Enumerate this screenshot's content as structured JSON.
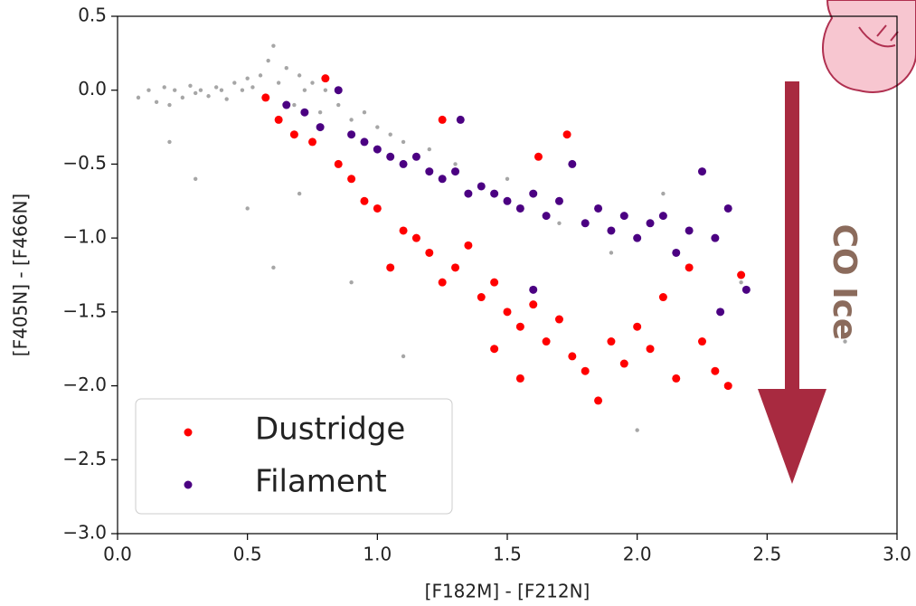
{
  "chart_data": {
    "type": "scatter",
    "x_label": "[F182M] - [F212N]",
    "y_label": "[F405N] - [F466N]",
    "annotation": "CO Ice",
    "xlim": [
      0,
      3.0
    ],
    "ylim": [
      -3.0,
      0.5
    ],
    "xticks": [
      {
        "value": 0,
        "label": "0.0"
      },
      0.5,
      {
        "value": 1,
        "label": "1.0"
      },
      1.5,
      {
        "value": 2,
        "label": "2.0"
      },
      2.5,
      {
        "value": 3,
        "label": "3.0"
      }
    ],
    "yticks": [
      0.5,
      {
        "value": 0,
        "label": "0.0"
      },
      {
        "value": -0.5,
        "label": "−0.5"
      },
      {
        "value": -1,
        "label": "−1.0"
      },
      {
        "value": -1.5,
        "label": "−1.5"
      },
      {
        "value": -2,
        "label": "−2.0"
      },
      {
        "value": -2.5,
        "label": "−2.5"
      },
      {
        "value": -3,
        "label": "−3.0"
      }
    ],
    "series": [
      {
        "color": "#000000",
        "x": [
          0.08,
          0.12,
          0.15,
          0.18,
          0.2,
          0.22,
          0.25,
          0.28,
          0.3,
          0.32,
          0.35,
          0.38,
          0.4,
          0.42,
          0.45,
          0.48,
          0.5,
          0.52,
          0.55,
          0.58,
          0.6,
          0.62,
          0.65,
          0.68,
          0.7,
          0.72,
          0.75,
          0.78,
          0.8,
          0.85,
          0.9,
          0.95,
          1.0,
          1.05,
          1.1,
          1.2,
          0.3,
          0.5,
          0.7,
          1.3,
          1.5,
          1.7,
          1.9,
          2.1,
          2.4,
          2.6,
          0.2,
          0.9,
          1.1,
          2.0,
          2.8,
          0.6
        ],
        "values": [
          -0.05,
          0.0,
          -0.08,
          0.02,
          -0.1,
          0.0,
          -0.05,
          0.03,
          -0.02,
          0.0,
          -0.04,
          0.02,
          0.0,
          -0.06,
          0.05,
          0.0,
          0.08,
          0.02,
          0.1,
          0.2,
          0.3,
          0.05,
          0.15,
          -0.1,
          0.1,
          0.0,
          0.05,
          -0.15,
          0.0,
          -0.1,
          -0.2,
          -0.15,
          -0.25,
          -0.3,
          -0.35,
          -0.4,
          -0.6,
          -0.8,
          -0.7,
          -0.5,
          -0.6,
          -0.9,
          -1.1,
          -0.7,
          -1.3,
          -1.6,
          -0.35,
          -1.3,
          -1.8,
          -2.3,
          -1.7,
          -1.2
        ]
      },
      {
        "name": "Dustridge",
        "color": "#ff0000",
        "x": [
          0.57,
          0.62,
          0.68,
          0.75,
          0.8,
          0.85,
          0.9,
          0.95,
          1.0,
          1.05,
          1.1,
          1.15,
          1.2,
          1.25,
          1.3,
          1.35,
          1.4,
          1.45,
          1.5,
          1.55,
          1.6,
          1.65,
          1.7,
          1.73,
          1.75,
          1.8,
          1.85,
          1.9,
          1.95,
          2.0,
          2.05,
          2.1,
          2.15,
          2.2,
          2.25,
          2.3,
          2.35,
          2.4,
          1.62,
          1.25,
          1.45,
          1.55
        ],
        "values": [
          -0.05,
          -0.2,
          -0.3,
          -0.35,
          0.08,
          -0.5,
          -0.6,
          -0.75,
          -0.8,
          -1.2,
          -0.95,
          -1.0,
          -1.1,
          -1.3,
          -1.2,
          -1.05,
          -1.4,
          -1.3,
          -1.5,
          -1.6,
          -1.45,
          -1.7,
          -1.55,
          -0.3,
          -1.8,
          -1.9,
          -2.1,
          -1.7,
          -1.85,
          -1.6,
          -1.75,
          -1.4,
          -1.95,
          -1.2,
          -1.7,
          -1.9,
          -2.0,
          -1.25,
          -0.45,
          -0.2,
          -1.75,
          -1.95
        ]
      },
      {
        "name": "Filament",
        "color": "#4b0082",
        "x": [
          0.65,
          0.72,
          0.78,
          0.85,
          0.9,
          0.95,
          1.0,
          1.05,
          1.1,
          1.15,
          1.2,
          1.25,
          1.3,
          1.32,
          1.35,
          1.4,
          1.45,
          1.5,
          1.55,
          1.6,
          1.65,
          1.7,
          1.75,
          1.8,
          1.85,
          1.9,
          1.95,
          2.0,
          2.05,
          2.1,
          2.15,
          2.2,
          2.25,
          2.3,
          2.35,
          2.32,
          2.42,
          1.6
        ],
        "values": [
          -0.1,
          -0.15,
          -0.25,
          0.0,
          -0.3,
          -0.35,
          -0.4,
          -0.45,
          -0.5,
          -0.45,
          -0.55,
          -0.6,
          -0.55,
          -0.2,
          -0.7,
          -0.65,
          -0.7,
          -0.75,
          -0.8,
          -0.7,
          -0.85,
          -0.75,
          -0.5,
          -0.9,
          -0.8,
          -0.95,
          -0.85,
          -1.0,
          -0.9,
          -0.85,
          -1.1,
          -0.95,
          -0.55,
          -1.0,
          -0.8,
          -1.5,
          -1.35,
          -1.35
        ]
      }
    ]
  }
}
